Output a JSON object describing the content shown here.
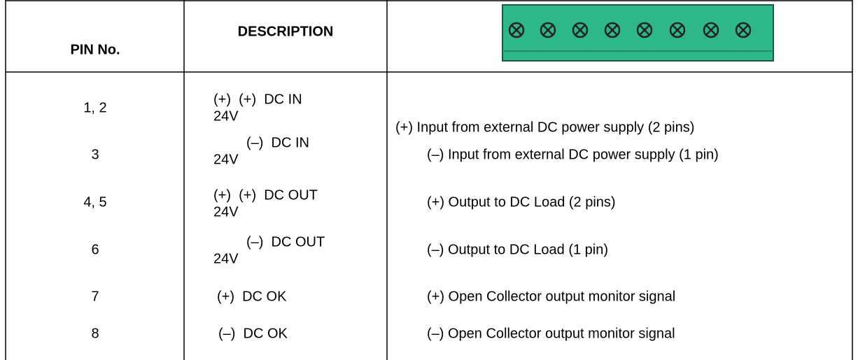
{
  "header": {
    "pin": "PIN No.",
    "description": "DESCRIPTION"
  },
  "rows": [
    {
      "pin": "1, 2",
      "description": [
        "(+)  (+)  DC IN",
        "24V"
      ],
      "function": "(+) Input from external DC power supply (2 pins)"
    },
    {
      "pin": "3",
      "description": [
        "(–)  DC IN",
        "24V"
      ],
      "function": "(–) Input from external DC power supply (1 pin)"
    },
    {
      "pin": "4, 5",
      "description": [
        "(+)  (+)  DC OUT",
        "24V"
      ],
      "function": "(+) Output to DC Load (2 pins)"
    },
    {
      "pin": "6",
      "description": [
        "(–)  DC OUT",
        "24V"
      ],
      "function": "(–) Output to DC Load (1 pin)"
    },
    {
      "pin": "7",
      "description": [
        "(+)  DC OK"
      ],
      "function": "(+) Open Collector output monitor signal"
    },
    {
      "pin": "8",
      "description": [
        "(–)  DC OK"
      ],
      "function": "(–) Open Collector output monitor signal"
    }
  ]
}
